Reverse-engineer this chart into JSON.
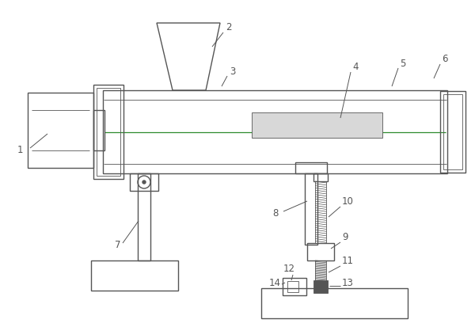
{
  "bg_color": "#ffffff",
  "line_color": "#555555",
  "lw": 1.0,
  "tlw": 0.6,
  "green_color": "#2e8b2e",
  "label_fontsize": 8.5,
  "fig_width": 6.0,
  "fig_height": 4.14,
  "dpi": 100
}
